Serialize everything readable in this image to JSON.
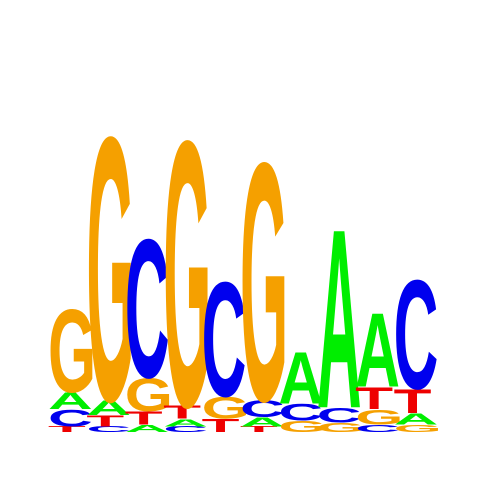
{
  "logo": {
    "palette": {
      "A": "#00ee00",
      "C": "#0000ee",
      "G": "#f5a000",
      "T": "#ee0000"
    },
    "positions": [
      [
        [
          "T",
          0.03
        ],
        [
          "C",
          0.09
        ],
        [
          "A",
          0.09
        ],
        [
          "G",
          0.45
        ]
      ],
      [
        [
          "C",
          0.03
        ],
        [
          "T",
          0.06
        ],
        [
          "A",
          0.08
        ],
        [
          "G",
          1.43
        ]
      ],
      [
        [
          "A",
          0.04
        ],
        [
          "T",
          0.07
        ],
        [
          "G",
          0.18
        ],
        [
          "C",
          0.75
        ]
      ],
      [
        [
          "C",
          0.03
        ],
        [
          "A",
          0.04
        ],
        [
          "T",
          0.07
        ],
        [
          "G",
          1.44
        ]
      ],
      [
        [
          "T",
          0.07
        ],
        [
          "G",
          0.12
        ],
        [
          "C",
          0.62
        ]
      ],
      [
        [
          "T",
          0.03
        ],
        [
          "A",
          0.05
        ],
        [
          "C",
          0.09
        ],
        [
          "G",
          1.29
        ]
      ],
      [
        [
          "G",
          0.06
        ],
        [
          "C",
          0.09
        ],
        [
          "A",
          0.28
        ]
      ],
      [
        [
          "G",
          0.05
        ],
        [
          "C",
          0.08
        ],
        [
          "A",
          0.97
        ]
      ],
      [
        [
          "C",
          0.04
        ],
        [
          "G",
          0.08
        ],
        [
          "T",
          0.12
        ],
        [
          "A",
          0.4
        ]
      ],
      [
        [
          "G",
          0.04
        ],
        [
          "A",
          0.06
        ],
        [
          "T",
          0.13
        ],
        [
          "C",
          0.59
        ]
      ]
    ]
  }
}
